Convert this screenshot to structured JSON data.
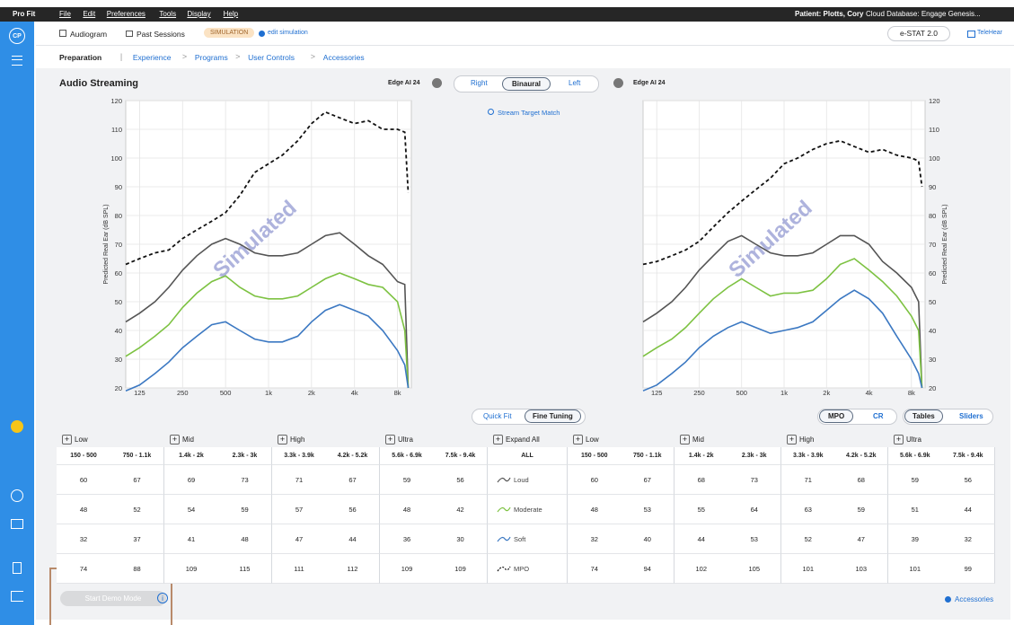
{
  "menu": {
    "app": "Pro Fit",
    "items": [
      "File",
      "Edit",
      "Preferences",
      "Tools",
      "Display",
      "Help"
    ],
    "patient": "Patient: Plotts, Cory",
    "database": "Cloud Database: Engage Genesis..."
  },
  "sidebar": {
    "initials": "CP"
  },
  "header": {
    "tabs": [
      "Audiogram",
      "Past Sessions"
    ],
    "badge": "SIMULATION",
    "edit": "edit simulation",
    "device": "e-STAT 2.0",
    "telehear": "TeleHear"
  },
  "nav": {
    "items": [
      "Preparation",
      "Experience",
      "Programs",
      "User Controls",
      "Accessories"
    ]
  },
  "streaming": {
    "title": "Audio Streaming",
    "left_device": "Edge AI 24",
    "right_device": "Edge AI 24",
    "sides": [
      "Right",
      "Binaural",
      "Left"
    ],
    "stream_target": "Stream Target Match"
  },
  "chart_data": [
    {
      "type": "line",
      "ylabel": "Predicted Real Ear (dB SPL)",
      "watermark": "Simulated",
      "yaxis_side": "left",
      "log_x": true,
      "grid": true,
      "xlim": [
        100,
        10000
      ],
      "ylim": [
        20,
        120
      ],
      "xticks": [
        125,
        250,
        500,
        {
          "value": 1000,
          "label": "1k"
        },
        {
          "value": 2000,
          "label": "2k"
        },
        {
          "value": 4000,
          "label": "4k"
        },
        {
          "value": 8000,
          "label": "8k"
        }
      ],
      "yticks": [
        20,
        30,
        40,
        50,
        60,
        70,
        80,
        90,
        100,
        110,
        120
      ],
      "x": [
        100,
        125,
        160,
        200,
        250,
        315,
        400,
        500,
        630,
        800,
        1000,
        1250,
        1600,
        2000,
        2500,
        3150,
        4000,
        5000,
        6300,
        8000,
        9000,
        9500
      ],
      "series": [
        {
          "color": "#111111",
          "dashed": true,
          "values": [
            63,
            65,
            67,
            68,
            72,
            75,
            78,
            81,
            87,
            95,
            98,
            101,
            106,
            112,
            116,
            114,
            112,
            113,
            110,
            110,
            109,
            88
          ]
        },
        {
          "color": "#555555",
          "dashed": false,
          "values": [
            43,
            46,
            50,
            55,
            61,
            66,
            70,
            72,
            70,
            67,
            66,
            66,
            67,
            70,
            73,
            74,
            70,
            66,
            63,
            57,
            56,
            20
          ]
        },
        {
          "color": "#7dc242",
          "dashed": false,
          "values": [
            31,
            34,
            38,
            42,
            48,
            53,
            57,
            59,
            55,
            52,
            51,
            51,
            52,
            55,
            58,
            60,
            58,
            56,
            55,
            50,
            40,
            20
          ]
        },
        {
          "color": "#3b78c2",
          "dashed": false,
          "values": [
            19,
            21,
            25,
            29,
            34,
            38,
            42,
            43,
            40,
            37,
            36,
            36,
            38,
            43,
            47,
            49,
            47,
            45,
            40,
            33,
            28,
            20
          ]
        }
      ]
    },
    {
      "type": "line",
      "ylabel": "Predicted Real Ear (dB SPL)",
      "watermark": "Simulated",
      "yaxis_side": "right",
      "log_x": true,
      "grid": true,
      "xlim": [
        100,
        10000
      ],
      "ylim": [
        20,
        120
      ],
      "xticks": [
        125,
        250,
        500,
        {
          "value": 1000,
          "label": "1k"
        },
        {
          "value": 2000,
          "label": "2k"
        },
        {
          "value": 4000,
          "label": "4k"
        },
        {
          "value": 8000,
          "label": "8k"
        }
      ],
      "yticks": [
        20,
        30,
        40,
        50,
        60,
        70,
        80,
        90,
        100,
        110,
        120
      ],
      "x": [
        100,
        125,
        160,
        200,
        250,
        315,
        400,
        500,
        630,
        800,
        1000,
        1250,
        1600,
        2000,
        2500,
        3150,
        4000,
        5000,
        6300,
        8000,
        9000,
        9500
      ],
      "series": [
        {
          "color": "#111111",
          "dashed": true,
          "values": [
            63,
            64,
            66,
            68,
            71,
            76,
            81,
            85,
            89,
            93,
            98,
            100,
            103,
            105,
            106,
            104,
            102,
            103,
            101,
            100,
            99,
            90
          ]
        },
        {
          "color": "#555555",
          "dashed": false,
          "values": [
            43,
            46,
            50,
            55,
            61,
            66,
            71,
            73,
            70,
            67,
            66,
            66,
            67,
            70,
            73,
            73,
            70,
            64,
            60,
            55,
            50,
            20
          ]
        },
        {
          "color": "#7dc242",
          "dashed": false,
          "values": [
            31,
            34,
            37,
            41,
            46,
            51,
            55,
            58,
            55,
            52,
            53,
            53,
            54,
            58,
            63,
            65,
            61,
            57,
            52,
            45,
            40,
            20
          ]
        },
        {
          "color": "#3b78c2",
          "dashed": false,
          "values": [
            19,
            21,
            25,
            29,
            34,
            38,
            41,
            43,
            41,
            39,
            40,
            41,
            43,
            47,
            51,
            54,
            51,
            46,
            38,
            30,
            25,
            20
          ]
        }
      ]
    }
  ],
  "modes": [
    "Quick Fit",
    "Fine Tuning"
  ],
  "views": [
    "MPO",
    "CR",
    "Tables",
    "Sliders"
  ],
  "table": {
    "groups": [
      "Low",
      "Mid",
      "High",
      "Ultra"
    ],
    "expand": "Expand All",
    "bands": [
      "150 - 500",
      "750 - 1.1k",
      "1.4k - 2k",
      "2.3k - 3k",
      "3.3k - 3.9k",
      "4.2k - 5.2k",
      "5.6k - 6.9k",
      "7.5k - 9.4k"
    ],
    "all": "ALL",
    "levels": [
      "Loud",
      "Moderate",
      "Soft",
      "MPO"
    ],
    "left": [
      [
        60,
        67,
        69,
        73,
        71,
        67,
        59,
        56
      ],
      [
        48,
        52,
        54,
        59,
        57,
        56,
        48,
        42
      ],
      [
        32,
        37,
        41,
        48,
        47,
        44,
        36,
        30
      ],
      [
        74,
        88,
        109,
        115,
        111,
        112,
        109,
        109
      ]
    ],
    "right": [
      [
        60,
        67,
        68,
        73,
        71,
        68,
        59,
        56
      ],
      [
        48,
        53,
        55,
        64,
        63,
        59,
        51,
        44
      ],
      [
        32,
        40,
        44,
        53,
        52,
        47,
        39,
        32
      ],
      [
        74,
        94,
        102,
        105,
        101,
        103,
        101,
        99
      ]
    ]
  },
  "footer": {
    "demo": "Start Demo Mode",
    "accessories": "Accessories"
  }
}
